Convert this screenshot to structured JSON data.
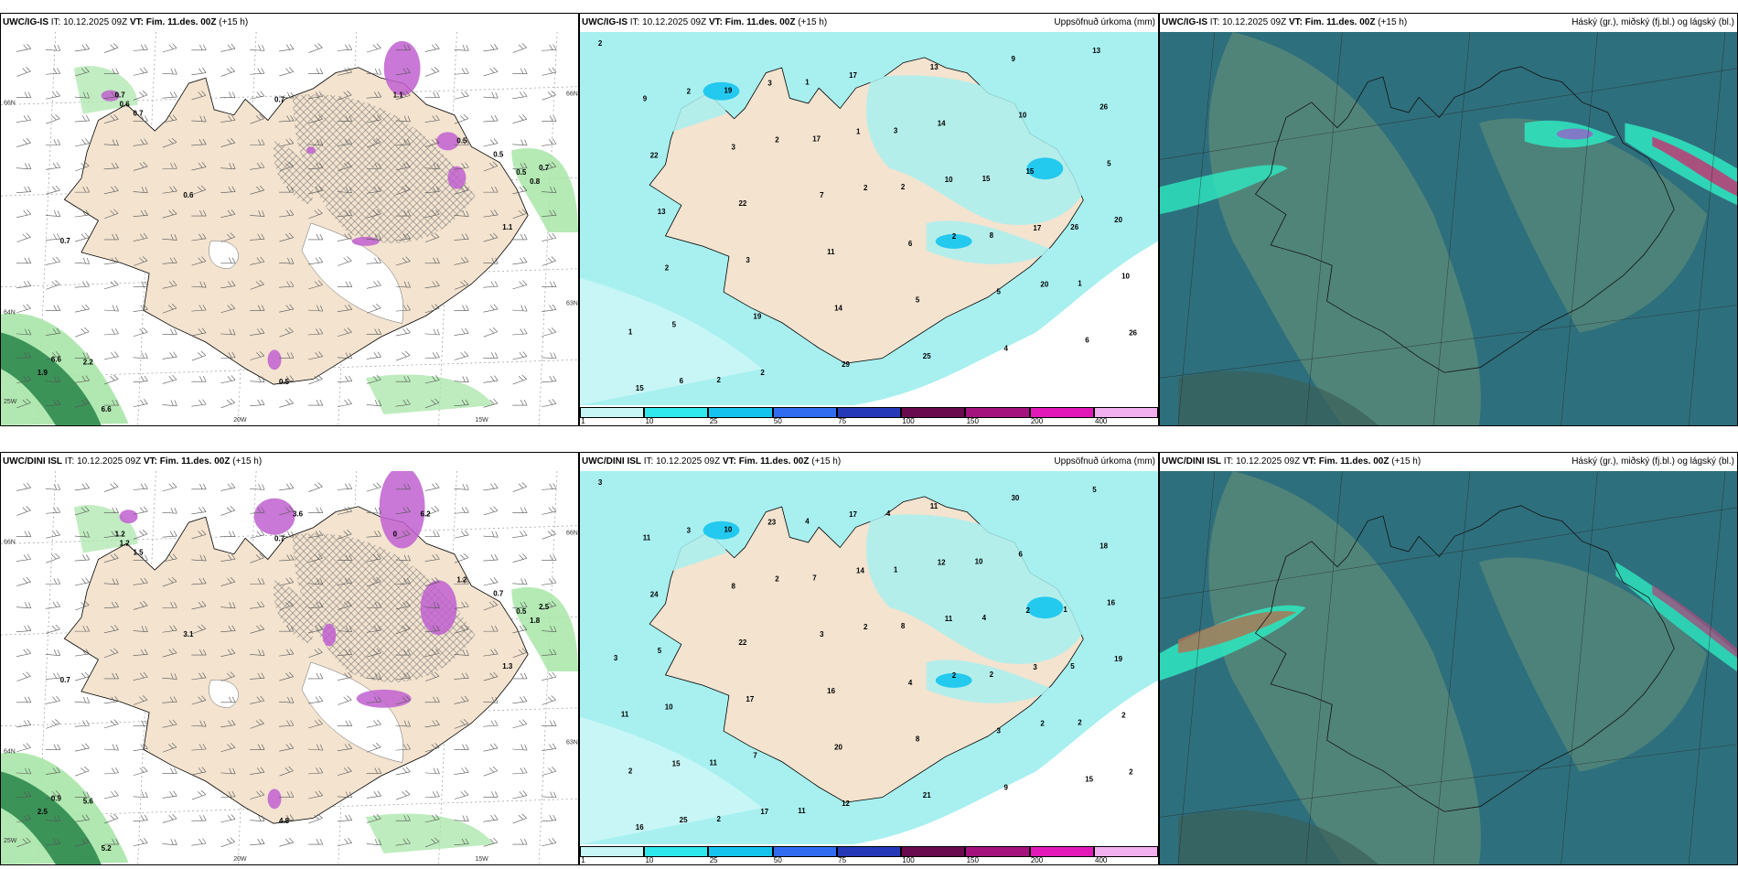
{
  "rows": [
    {
      "model_label": "UWC/IG-IS",
      "it_label": "IT: 10.12.2025 09Z",
      "vt_label": "VT: Fim. 11.des. 00Z",
      "lead": "(+15 h)",
      "wind_labels": [
        "0.7",
        "0.6",
        "0.7",
        "0.7",
        "1.1",
        "0.5",
        "0.5",
        "0.5",
        "0.8",
        "0.7",
        "0.6",
        "1.1",
        "0.7",
        "6.6",
        "2.2",
        "1.9",
        "6.6",
        "0.5"
      ],
      "precip_values": [
        "2",
        "2",
        "2",
        "2",
        "2",
        "20",
        "26",
        "6",
        "3",
        "1",
        "10",
        "17",
        "10",
        "5",
        "2",
        "17",
        "14",
        "15",
        "20",
        "2",
        "19",
        "29",
        "13",
        "10",
        "5",
        "13",
        "3",
        "14",
        "25",
        "9",
        "26",
        "22",
        "22",
        "11",
        "5",
        "4",
        "13",
        "9",
        "3",
        "7",
        "6",
        "5",
        "6",
        "15",
        "19",
        "17",
        "2",
        "8",
        "1",
        "1",
        "2",
        "1",
        "3",
        "15",
        "26"
      ]
    },
    {
      "model_label": "UWC/DINI ISL",
      "it_label": "IT: 10.12.2025 09Z",
      "vt_label": "VT: Fim. 11.des. 00Z",
      "lead": "(+15 h)",
      "wind_labels": [
        "1.2",
        "1.2",
        "0.7",
        "1.5",
        "0",
        "1.2",
        "0.7",
        "0.5",
        "1.8",
        "2.5",
        "3.1",
        "1.3",
        "0.7",
        "0.9",
        "5.6",
        "2.5",
        "5.2",
        "4.8",
        "3.6",
        "6.2"
      ],
      "precip_values": [
        "3",
        "3",
        "2",
        "2",
        "2",
        "2",
        "2",
        "25",
        "23",
        "14",
        "11",
        "3",
        "2",
        "15",
        "17",
        "17",
        "12",
        "2",
        "19",
        "10",
        "7",
        "12",
        "11",
        "6",
        "16",
        "5",
        "17",
        "20",
        "21",
        "30",
        "18",
        "24",
        "22",
        "16",
        "8",
        "9",
        "5",
        "11",
        "8",
        "3",
        "4",
        "3",
        "15",
        "16",
        "10",
        "7",
        "8",
        "2",
        "2",
        "2",
        "2",
        "4",
        "1",
        "4",
        "5",
        "11",
        "11",
        "11",
        "4",
        "10",
        "1",
        "3"
      ]
    }
  ],
  "precip_title": "Uppsöfnuð úrkoma (mm)",
  "cloud_title": "Háský (gr.), miðský (fj.bl.) og lágský (bl.)",
  "colorbar": {
    "ticks": [
      "1",
      "10",
      "25",
      "50",
      "75",
      "100",
      "150",
      "200",
      "400"
    ],
    "colors": [
      "#c8f6f6",
      "#2ee8ee",
      "#14c4ee",
      "#2f6cf0",
      "#2438b8",
      "#6a0a4e",
      "#a4127e",
      "#e218b8",
      "#f2b0f0"
    ]
  },
  "geo_labels": {
    "lon_20": "20W",
    "lon_15": "15W",
    "lat_66": "66N",
    "lat_64": "64N",
    "lat_63": "63N",
    "lon_25": "25W"
  },
  "colors": {
    "land": "#f3e3cf",
    "green": "#a8e6a8",
    "magenta": "#c060d0",
    "cyan": "#a8f0f0",
    "cloud_bg": "#2e6f7d",
    "cloud_mid": "#5a8a78",
    "cloud_high": "#2ee8c0"
  }
}
